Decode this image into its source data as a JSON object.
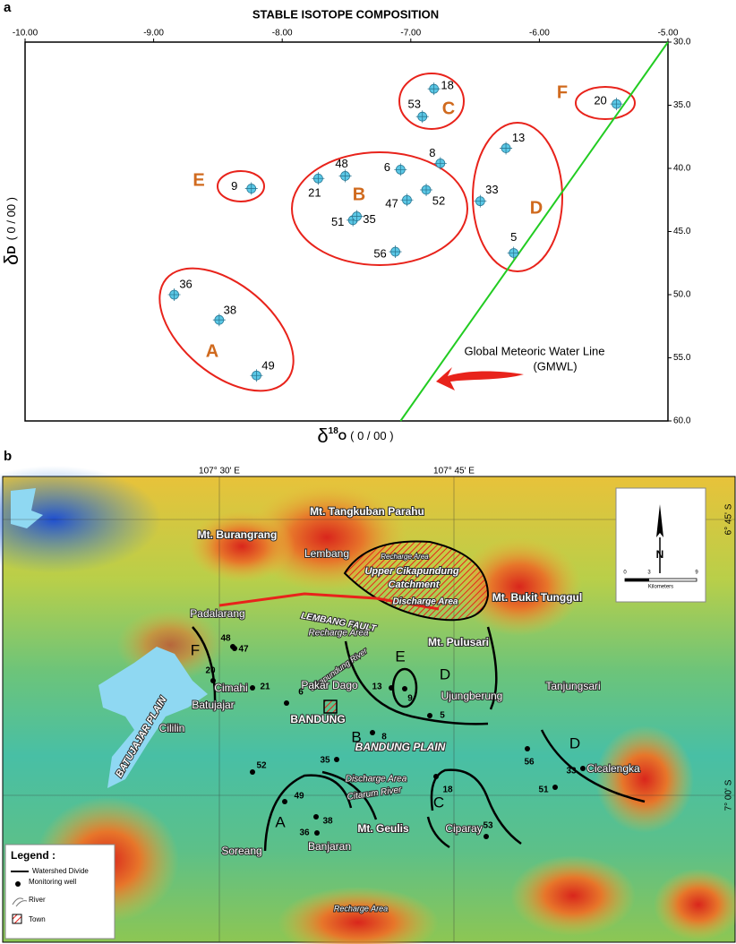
{
  "panels": [
    "a",
    "b"
  ],
  "chart_data": {
    "type": "scatter",
    "title": "STABLE ISOTOPE COMPOSITION",
    "x_label": [
      "δ",
      "18",
      "O",
      "( 0 / 00 )"
    ],
    "y_label": [
      "δ",
      "D",
      "( 0 / 00 )"
    ],
    "xlim": [
      -10,
      -5
    ],
    "xticks": [
      {
        "value": -10,
        "label": "-10.00"
      },
      {
        "value": -9,
        "label": "-9.00"
      },
      {
        "value": -8,
        "label": "-8.00"
      },
      {
        "value": -7,
        "label": "-7.00"
      },
      {
        "value": -6,
        "label": "-6.00"
      },
      {
        "value": -5,
        "label": "-5.00"
      }
    ],
    "ylim": [
      60,
      30
    ],
    "yticks": [
      {
        "value": 30,
        "label": "30.0"
      },
      {
        "value": 35,
        "label": "35.0"
      },
      {
        "value": 40,
        "label": "40.0"
      },
      {
        "value": 45,
        "label": "45.0"
      },
      {
        "value": 50,
        "label": "50.0"
      },
      {
        "value": 55,
        "label": "55.0"
      },
      {
        "value": 60,
        "label": "60.0"
      }
    ],
    "color": "#5bc8e6",
    "point_labels": [
      "36",
      "38",
      "49",
      "9",
      "21",
      "48",
      "51",
      "35",
      "6",
      "47",
      "52",
      "8",
      "56",
      "18",
      "53",
      "13",
      "33",
      "5",
      "20"
    ],
    "x": [
      -8.84,
      -8.49,
      -8.2,
      -8.24,
      -7.72,
      -7.51,
      -7.45,
      -7.42,
      -7.08,
      -7.03,
      -6.88,
      -6.77,
      -7.12,
      -6.82,
      -6.91,
      -6.26,
      -6.46,
      -6.2,
      -5.4
    ],
    "values": [
      50.0,
      52.0,
      56.4,
      41.6,
      40.8,
      40.6,
      44.1,
      43.8,
      40.1,
      42.5,
      41.7,
      39.6,
      46.6,
      33.7,
      35.9,
      38.4,
      42.6,
      46.7,
      34.9
    ],
    "groups": [
      "A",
      "B",
      "C",
      "D",
      "E",
      "F"
    ],
    "group_color": "#e8231b",
    "group_label_color": "#d06a1e",
    "line": {
      "name": "Global Meteoric Water Line",
      "abbr": "(GMWL)",
      "color": "#22cc22",
      "x": [
        -7.08,
        -5.0
      ],
      "values": [
        60,
        30
      ]
    }
  },
  "map": {
    "coordinates": [
      "107° 30' E",
      "107° 45' E",
      "6° 45' S",
      "7° 00' S"
    ],
    "places": [
      "Mt. Tangkuban Parahu",
      "Mt. Burangrang",
      "Lembang",
      "Recharge Area",
      "Upper Cikapundung",
      "Catchment",
      "Mt. Bukit Tunggul",
      "Discharge Area",
      "Padalarang",
      "LEMBANG FAULT",
      "Recharge Area",
      "Mt. Pulusari",
      "Cikapundung River",
      "Pakar Dago",
      "Ujungberung",
      "Tanjungsari",
      "Cimahi",
      "Batujajar",
      "BANDUNG",
      "Cililin",
      "BATUJAJAR PLAIN",
      "BANDUNG PLAIN",
      "Discharge Area",
      "Citarum River",
      "Cicalengka",
      "Soreang",
      "Mt. Geulis",
      "Ciparay",
      "Banjaran",
      "Recharge Area"
    ],
    "zones": [
      "F",
      "E",
      "D",
      "B",
      "D",
      "A",
      "C"
    ],
    "wells": [
      "48",
      "47",
      "20",
      "21",
      "6",
      "13",
      "9",
      "8",
      "5",
      "35",
      "52",
      "56",
      "33",
      "51",
      "18",
      "49",
      "38",
      "36",
      "53"
    ],
    "legend": {
      "title": "Legend :",
      "items": [
        "Watershed Divide",
        "Monitoring well",
        "River",
        "Town"
      ]
    },
    "north": "N",
    "scale": {
      "ticks": [
        "0",
        "3",
        "9"
      ],
      "unit": "Kilometers"
    }
  }
}
